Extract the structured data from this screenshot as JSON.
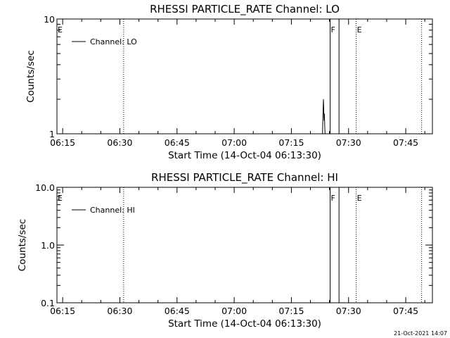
{
  "timestamp": "21-Oct-2021 14:07",
  "chart_data": [
    {
      "type": "line",
      "title": "RHESSI PARTICLE_RATE Channel: LO",
      "xlabel": "Start Time (14-Oct-04 06:13:30)",
      "ylabel": "Counts/sec",
      "y_scale": "log",
      "ylim": [
        1,
        10
      ],
      "y_ticks": [
        "1",
        "10"
      ],
      "xlim": [
        "06:13:30",
        "07:52:00"
      ],
      "x_ticks": [
        "06:15",
        "06:30",
        "06:45",
        "07:00",
        "07:15",
        "07:30",
        "07:45"
      ],
      "legend": {
        "label": "Channel: LO",
        "position": "top-left"
      },
      "series": [
        {
          "name": "Channel: LO",
          "x": [
            "07:23:10",
            "07:23:15",
            "07:23:20",
            "07:23:25",
            "07:23:30",
            "07:23:35",
            "07:23:40",
            "07:23:45",
            "07:23:50"
          ],
          "y": [
            1,
            1.3,
            1.7,
            2.0,
            1.6,
            1.3,
            1.5,
            1.2,
            1
          ]
        }
      ],
      "flags": [
        {
          "label": "E",
          "x": "06:13:30"
        },
        {
          "label": "F",
          "x": "07:25:10"
        },
        {
          "label": "E",
          "x": "07:32:00"
        }
      ],
      "dotted_markers": [
        "06:31:00",
        "07:32:00",
        "07:49:10"
      ],
      "solid_markers": [
        "07:25:10",
        "07:27:30"
      ]
    },
    {
      "type": "line",
      "title": "RHESSI PARTICLE_RATE Channel: HI",
      "xlabel": "Start Time (14-Oct-04 06:13:30)",
      "ylabel": "Counts/sec",
      "y_scale": "log",
      "ylim": [
        0.1,
        10.0
      ],
      "y_ticks": [
        "0.1",
        "1.0",
        "10.0"
      ],
      "xlim": [
        "06:13:30",
        "07:52:00"
      ],
      "x_ticks": [
        "06:15",
        "06:30",
        "06:45",
        "07:00",
        "07:15",
        "07:30",
        "07:45"
      ],
      "legend": {
        "label": "Channel: HI",
        "position": "top-left"
      },
      "series": [
        {
          "name": "Channel: HI",
          "x": [],
          "y": []
        }
      ],
      "flags": [
        {
          "label": "E",
          "x": "06:13:30"
        },
        {
          "label": "F",
          "x": "07:25:10"
        },
        {
          "label": "E",
          "x": "07:32:00"
        }
      ],
      "dotted_markers": [
        "06:31:00",
        "07:32:00",
        "07:49:10"
      ],
      "solid_markers": [
        "07:25:10",
        "07:27:30"
      ]
    }
  ]
}
